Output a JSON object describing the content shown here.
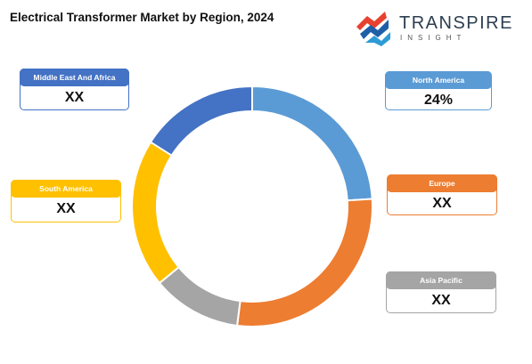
{
  "title": "Electrical Transformer Market by Region, 2024",
  "logo": {
    "name": "TRANSPIRE",
    "tagline": "INSIGHT",
    "colors": [
      "#e8412f",
      "#1f5fa8",
      "#7a2b8f",
      "#2d9bd6"
    ]
  },
  "chart_data": {
    "type": "pie",
    "variant": "donut",
    "title": "Electrical Transformer Market by Region, 2024",
    "slices": [
      {
        "label": "North America",
        "value_label": "24%",
        "share": 0.24,
        "color": "#5b9bd5"
      },
      {
        "label": "Europe",
        "value_label": "XX",
        "share": 0.28,
        "color": "#ed7d31"
      },
      {
        "label": "Asia Pacific",
        "value_label": "XX",
        "share": 0.12,
        "color": "#a5a5a5"
      },
      {
        "label": "South America",
        "value_label": "XX",
        "share": 0.2,
        "color": "#ffc000"
      },
      {
        "label": "Middle East And Africa",
        "value_label": "XX",
        "share": 0.16,
        "color": "#4472c4"
      }
    ]
  }
}
